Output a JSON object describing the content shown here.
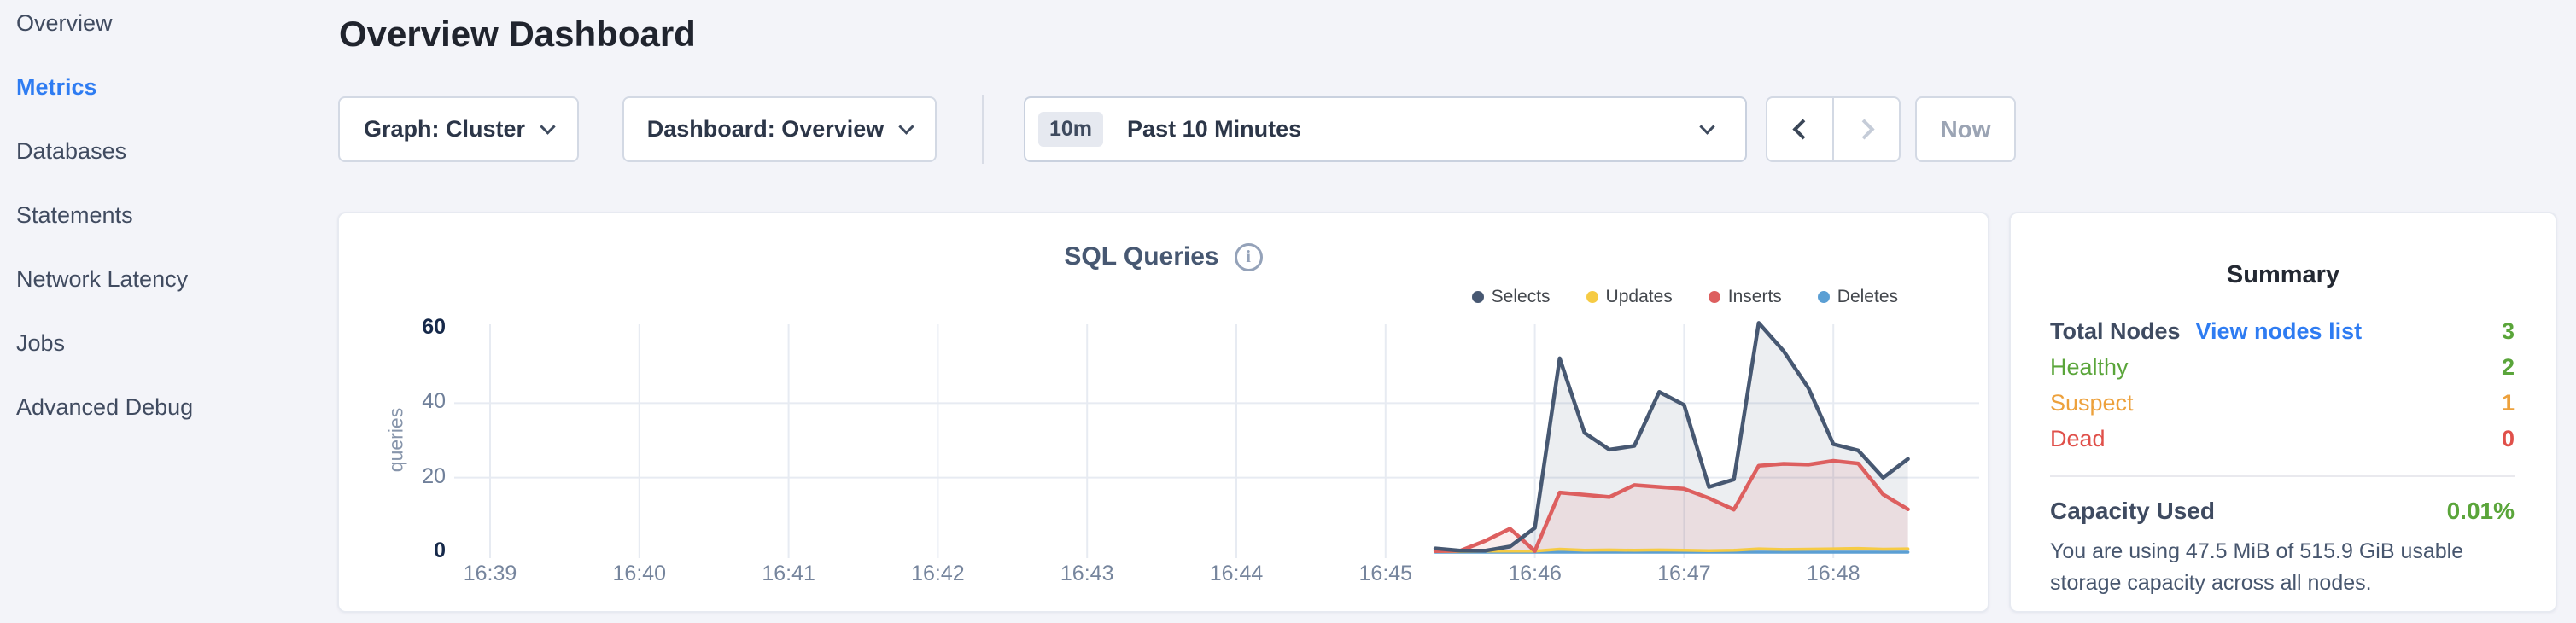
{
  "sidebar": {
    "items": [
      {
        "label": "Overview",
        "active": false
      },
      {
        "label": "Metrics",
        "active": true
      },
      {
        "label": "Databases",
        "active": false
      },
      {
        "label": "Statements",
        "active": false
      },
      {
        "label": "Network Latency",
        "active": false
      },
      {
        "label": "Jobs",
        "active": false
      },
      {
        "label": "Advanced Debug",
        "active": false
      }
    ]
  },
  "header": {
    "title": "Overview Dashboard"
  },
  "toolbar": {
    "graph_label": "Graph: Cluster",
    "dashboard_label": "Dashboard: Overview",
    "time_badge": "10m",
    "time_label": "Past 10 Minutes",
    "now_label": "Now"
  },
  "chart_data": {
    "type": "line",
    "title": "SQL Queries",
    "info_icon_glyph": "i",
    "ylabel": "queries",
    "ylim": [
      0,
      62
    ],
    "y_ticks": [
      {
        "value": 0,
        "label": "0",
        "bold": true
      },
      {
        "value": 20,
        "label": "20",
        "bold": false
      },
      {
        "value": 40,
        "label": "40",
        "bold": false
      },
      {
        "value": 60,
        "label": "60",
        "bold": true
      }
    ],
    "y_gridlines": [
      20,
      40
    ],
    "x_ticks": [
      {
        "label": "16:39",
        "t": 0
      },
      {
        "label": "16:40",
        "t": 60
      },
      {
        "label": "16:41",
        "t": 120
      },
      {
        "label": "16:42",
        "t": 180
      },
      {
        "label": "16:43",
        "t": 240
      },
      {
        "label": "16:44",
        "t": 300
      },
      {
        "label": "16:45",
        "t": 360
      },
      {
        "label": "16:46",
        "t": 420
      },
      {
        "label": "16:47",
        "t": 480
      },
      {
        "label": "16:48",
        "t": 540
      }
    ],
    "t_unit": "seconds since 16:39",
    "legend_position": "top-right",
    "grid": true,
    "series": [
      {
        "name": "Selects",
        "color": "#475872",
        "fill": "rgba(71,88,114,0.10)",
        "t": [
          380,
          390,
          400,
          410,
          420,
          430,
          440,
          450,
          460,
          470,
          480,
          490,
          500,
          510,
          520,
          530,
          540,
          550,
          560,
          570
        ],
        "values": [
          1,
          0.4,
          0.4,
          1.5,
          6.5,
          52,
          32,
          27.5,
          28.5,
          43,
          39.5,
          17.5,
          19.5,
          61.5,
          54,
          44,
          29,
          27.3,
          20,
          25
        ]
      },
      {
        "name": "Updates",
        "color": "#f6cb44",
        "fill": "rgba(246,203,68,0.15)",
        "t": [
          380,
          390,
          400,
          410,
          420,
          430,
          440,
          450,
          460,
          470,
          480,
          490,
          500,
          510,
          520,
          530,
          540,
          550,
          560,
          570
        ],
        "values": [
          0.2,
          0.2,
          0.3,
          0.3,
          0.3,
          0.8,
          0.5,
          0.6,
          0.5,
          0.6,
          0.5,
          0.4,
          0.5,
          0.9,
          0.7,
          0.8,
          0.9,
          1,
          0.8,
          0.9
        ]
      },
      {
        "name": "Inserts",
        "color": "#dd5f5f",
        "fill": "rgba(221,95,95,0.11)",
        "t": [
          380,
          390,
          400,
          410,
          420,
          430,
          440,
          450,
          460,
          470,
          480,
          490,
          500,
          510,
          520,
          530,
          540,
          550,
          560,
          570
        ],
        "values": [
          0.3,
          0.4,
          3,
          6.3,
          0.3,
          16,
          15.4,
          14.8,
          18,
          17.5,
          17,
          14.5,
          11.4,
          23.2,
          23.7,
          23.5,
          24.5,
          23.8,
          15.5,
          11.5
        ]
      },
      {
        "name": "Deletes",
        "color": "#5b9fd4",
        "fill": "none",
        "t": [
          380,
          390,
          400,
          410,
          420,
          430,
          440,
          450,
          460,
          470,
          480,
          490,
          500,
          510,
          520,
          530,
          540,
          550,
          560,
          570
        ],
        "values": [
          0,
          0,
          0,
          0,
          0,
          0,
          0,
          0,
          0,
          0,
          0,
          0,
          0,
          0,
          0,
          0,
          0,
          0,
          0,
          0
        ]
      }
    ]
  },
  "summary": {
    "title": "Summary",
    "rows": [
      {
        "label": "Total Nodes",
        "link": "View nodes list",
        "value": "3",
        "label_tone": "dark",
        "value_tone": "green",
        "bold": true
      },
      {
        "label": "Healthy",
        "link": null,
        "value": "2",
        "label_tone": "green",
        "value_tone": "green",
        "bold": false
      },
      {
        "label": "Suspect",
        "link": null,
        "value": "1",
        "label_tone": "orange",
        "value_tone": "orange",
        "bold": false
      },
      {
        "label": "Dead",
        "link": null,
        "value": "0",
        "label_tone": "red",
        "value_tone": "red",
        "bold": false
      }
    ],
    "capacity": {
      "label": "Capacity Used",
      "value": "0.01%",
      "description": "You are using 47.5 MiB of 515.9 GiB usable storage capacity across all nodes."
    }
  },
  "colors": {
    "accent_blue": "#2e7cf2",
    "green": "#5aa53a",
    "orange": "#eda13c",
    "red": "#e0504a",
    "selects": "#475872",
    "updates": "#f6cb44",
    "inserts": "#dd5f5f",
    "deletes": "#5b9fd4"
  }
}
